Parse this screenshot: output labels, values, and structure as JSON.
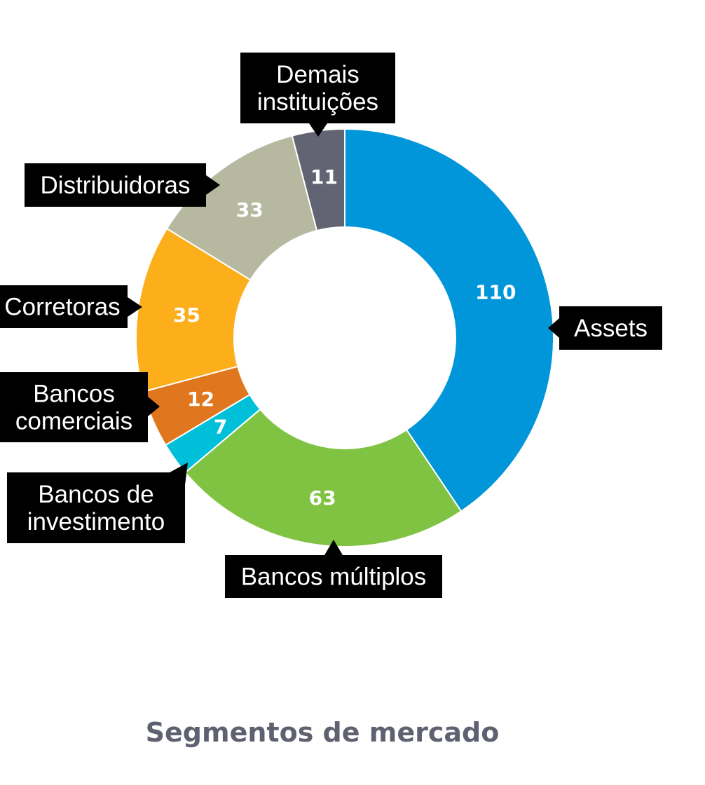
{
  "chart_data": {
    "type": "pie",
    "title": "",
    "caption": "Segmentos de mercado",
    "slices": [
      {
        "name": "Assets",
        "value": 110,
        "color": "#0096d9",
        "label_lines": [
          "Assets"
        ]
      },
      {
        "name": "Bancos múltiplos",
        "value": 63,
        "color": "#80c342",
        "label_lines": [
          "Bancos múltiplos"
        ]
      },
      {
        "name": "Bancos de investimento",
        "value": 7,
        "color": "#00bfd8",
        "label_lines": [
          "Bancos de",
          "investimento"
        ]
      },
      {
        "name": "Bancos comerciais",
        "value": 12,
        "color": "#e0771e",
        "label_lines": [
          "Bancos",
          "comerciais"
        ]
      },
      {
        "name": "Corretoras",
        "value": 35,
        "color": "#fcae1b",
        "label_lines": [
          "Corretoras"
        ]
      },
      {
        "name": "Distribuidoras",
        "value": 33,
        "color": "#b6b9a0",
        "label_lines": [
          "Distribuidoras"
        ]
      },
      {
        "name": "Demais instituições",
        "value": 11,
        "color": "#626474",
        "label_lines": [
          "Demais",
          "instituições"
        ]
      }
    ],
    "legend": "callout-labels"
  }
}
